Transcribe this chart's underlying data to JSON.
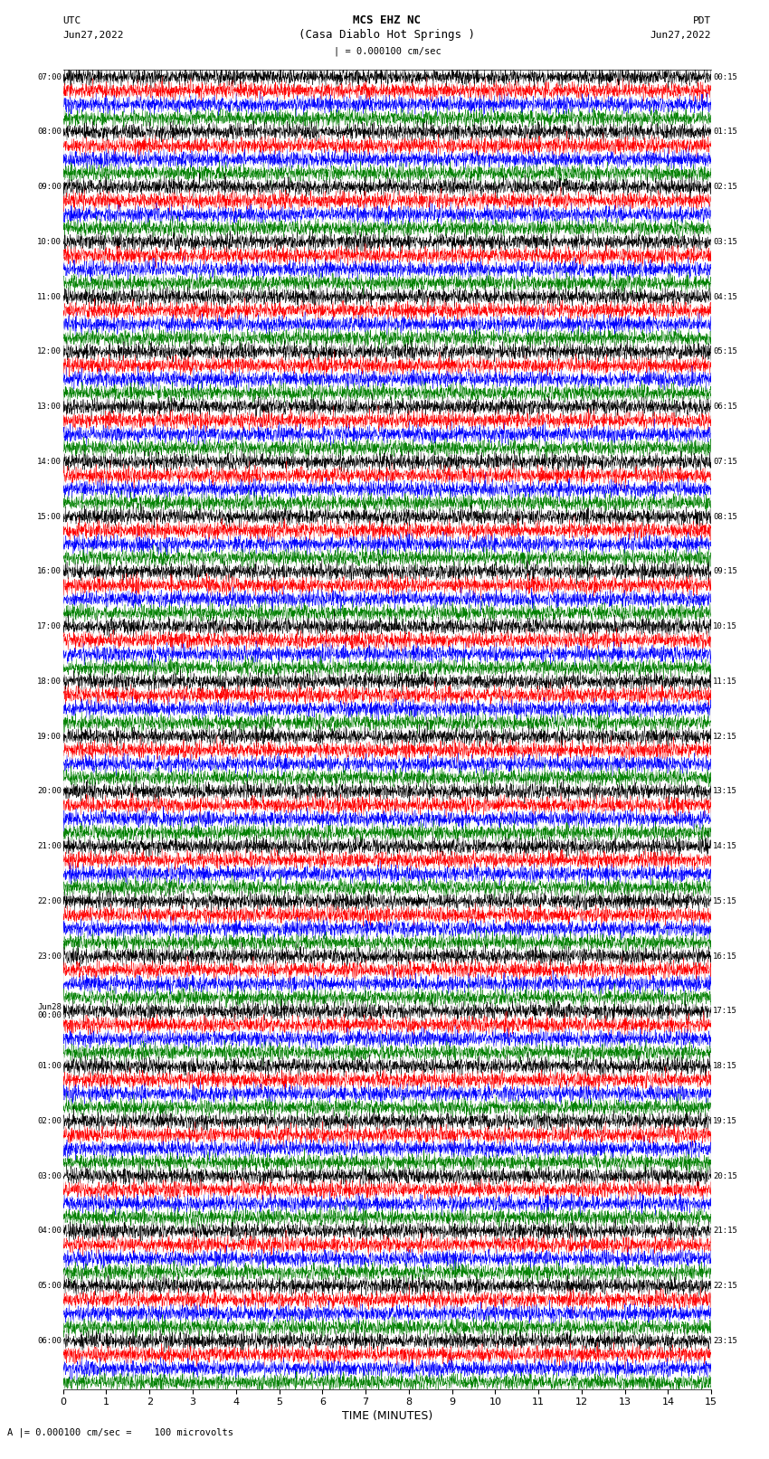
{
  "title_line1": "MCS EHZ NC",
  "title_line2": "(Casa Diablo Hot Springs )",
  "scale_label": "| = 0.000100 cm/sec",
  "bottom_label": "A |= 0.000100 cm/sec =    100 microvolts",
  "xlabel": "TIME (MINUTES)",
  "colors": [
    "black",
    "red",
    "blue",
    "green"
  ],
  "background_color": "white",
  "fig_width": 8.5,
  "fig_height": 16.13,
  "xlim": [
    0,
    15
  ],
  "xticks": [
    0,
    1,
    2,
    3,
    4,
    5,
    6,
    7,
    8,
    9,
    10,
    11,
    12,
    13,
    14,
    15
  ],
  "left_time_labels": [
    "07:00",
    "",
    "",
    "",
    "08:00",
    "",
    "",
    "",
    "09:00",
    "",
    "",
    "",
    "10:00",
    "",
    "",
    "",
    "11:00",
    "",
    "",
    "",
    "12:00",
    "",
    "",
    "",
    "13:00",
    "",
    "",
    "",
    "14:00",
    "",
    "",
    "",
    "15:00",
    "",
    "",
    "",
    "16:00",
    "",
    "",
    "",
    "17:00",
    "",
    "",
    "",
    "18:00",
    "",
    "",
    "",
    "19:00",
    "",
    "",
    "",
    "20:00",
    "",
    "",
    "",
    "21:00",
    "",
    "",
    "",
    "22:00",
    "",
    "",
    "",
    "23:00",
    "",
    "",
    "",
    "Jun28\n00:00",
    "",
    "",
    "",
    "01:00",
    "",
    "",
    "",
    "02:00",
    "",
    "",
    "",
    "03:00",
    "",
    "",
    "",
    "04:00",
    "",
    "",
    "",
    "05:00",
    "",
    "",
    "",
    "06:00",
    "",
    "",
    ""
  ],
  "right_time_labels": [
    "00:15",
    "",
    "",
    "",
    "01:15",
    "",
    "",
    "",
    "02:15",
    "",
    "",
    "",
    "03:15",
    "",
    "",
    "",
    "04:15",
    "",
    "",
    "",
    "05:15",
    "",
    "",
    "",
    "06:15",
    "",
    "",
    "",
    "07:15",
    "",
    "",
    "",
    "08:15",
    "",
    "",
    "",
    "09:15",
    "",
    "",
    "",
    "10:15",
    "",
    "",
    "",
    "11:15",
    "",
    "",
    "",
    "12:15",
    "",
    "",
    "",
    "13:15",
    "",
    "",
    "",
    "14:15",
    "",
    "",
    "",
    "15:15",
    "",
    "",
    "",
    "16:15",
    "",
    "",
    "",
    "17:15",
    "",
    "",
    "",
    "18:15",
    "",
    "",
    "",
    "19:15",
    "",
    "",
    "",
    "20:15",
    "",
    "",
    "",
    "21:15",
    "",
    "",
    "",
    "22:15",
    "",
    "",
    "",
    "23:15",
    "",
    "",
    ""
  ],
  "trace_amplitude": 0.28,
  "seed": 42,
  "n_pts": 3000,
  "lw": 0.3
}
